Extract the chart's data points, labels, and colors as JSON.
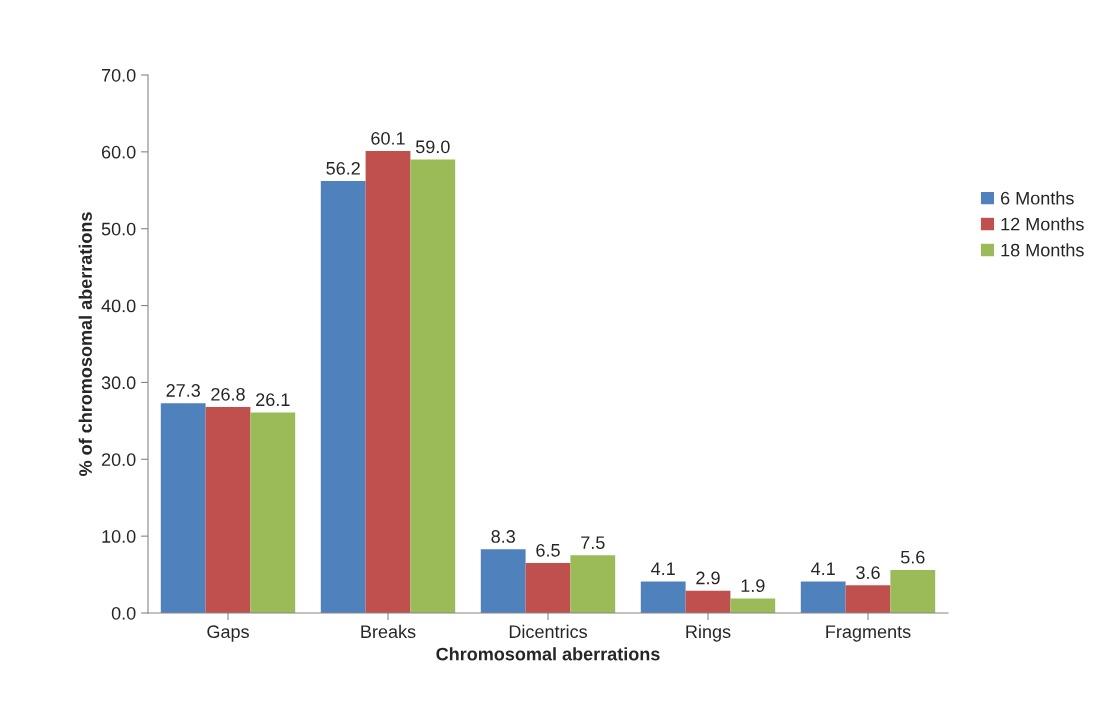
{
  "chart_data": {
    "type": "bar",
    "xlabel": "Chromosomal aberrations",
    "ylabel": "% of chromosomal aberrations",
    "categories": [
      "Gaps",
      "Breaks",
      "Dicentrics",
      "Rings",
      "Fragments"
    ],
    "series": [
      {
        "name": "6 Months",
        "color": "#4f81bd",
        "values": [
          27.3,
          56.2,
          8.3,
          4.1,
          4.1
        ],
        "value_labels": [
          "27.3",
          "56.2",
          "8.3",
          "4.1",
          "4.1"
        ]
      },
      {
        "name": "12 Months",
        "color": "#c0504d",
        "values": [
          26.8,
          60.1,
          6.5,
          2.9,
          3.6
        ],
        "value_labels": [
          "26.8",
          "60.1",
          "6.5",
          "2.9",
          "3.6"
        ]
      },
      {
        "name": "18 Months",
        "color": "#9bbb59",
        "values": [
          26.1,
          59.0,
          7.5,
          1.9,
          5.6
        ],
        "value_labels": [
          "26.1",
          "59.0",
          "7.5",
          "1.9",
          "5.6"
        ]
      }
    ],
    "ylim": [
      0,
      70
    ],
    "yticks": [
      {
        "value": 0,
        "label": "0.0"
      },
      {
        "value": 10,
        "label": "10.0"
      },
      {
        "value": 20,
        "label": "20.0"
      },
      {
        "value": 30,
        "label": "30.0"
      },
      {
        "value": 40,
        "label": "40.0"
      },
      {
        "value": 50,
        "label": "50.0"
      },
      {
        "value": 60,
        "label": "60.0"
      },
      {
        "value": 70,
        "label": "70.0"
      }
    ],
    "grid": false,
    "legend": "right"
  }
}
